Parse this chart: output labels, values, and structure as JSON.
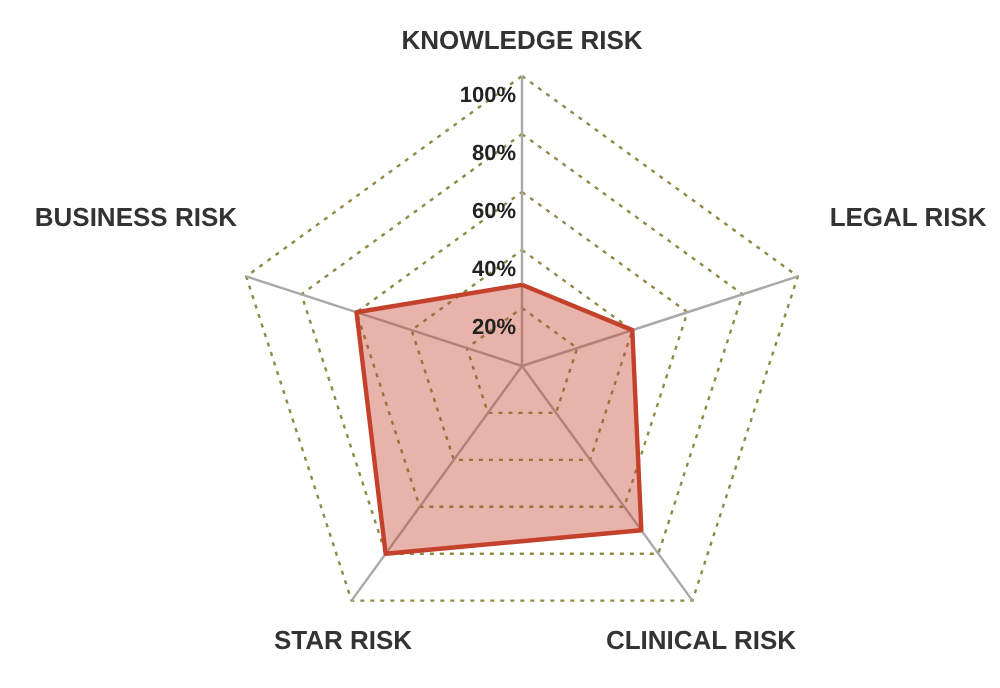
{
  "chart_data": {
    "type": "radar",
    "categories": [
      "KNOWLEDGE RISK",
      "LEGAL RISK",
      "CLINICAL RISK",
      "STAR RISK",
      "BUSINESS RISK"
    ],
    "series": [
      {
        "color": "#c4412b",
        "values": [
          28,
          40,
          70,
          80,
          60
        ]
      }
    ],
    "ylim": [
      0,
      100
    ],
    "yticks": [
      {
        "value": 20,
        "label": "20%"
      },
      {
        "value": 40,
        "label": "40%"
      },
      {
        "value": 60,
        "label": "60%"
      },
      {
        "value": 80,
        "label": "80%"
      },
      {
        "value": 100,
        "label": "100%"
      }
    ],
    "grid": true
  }
}
